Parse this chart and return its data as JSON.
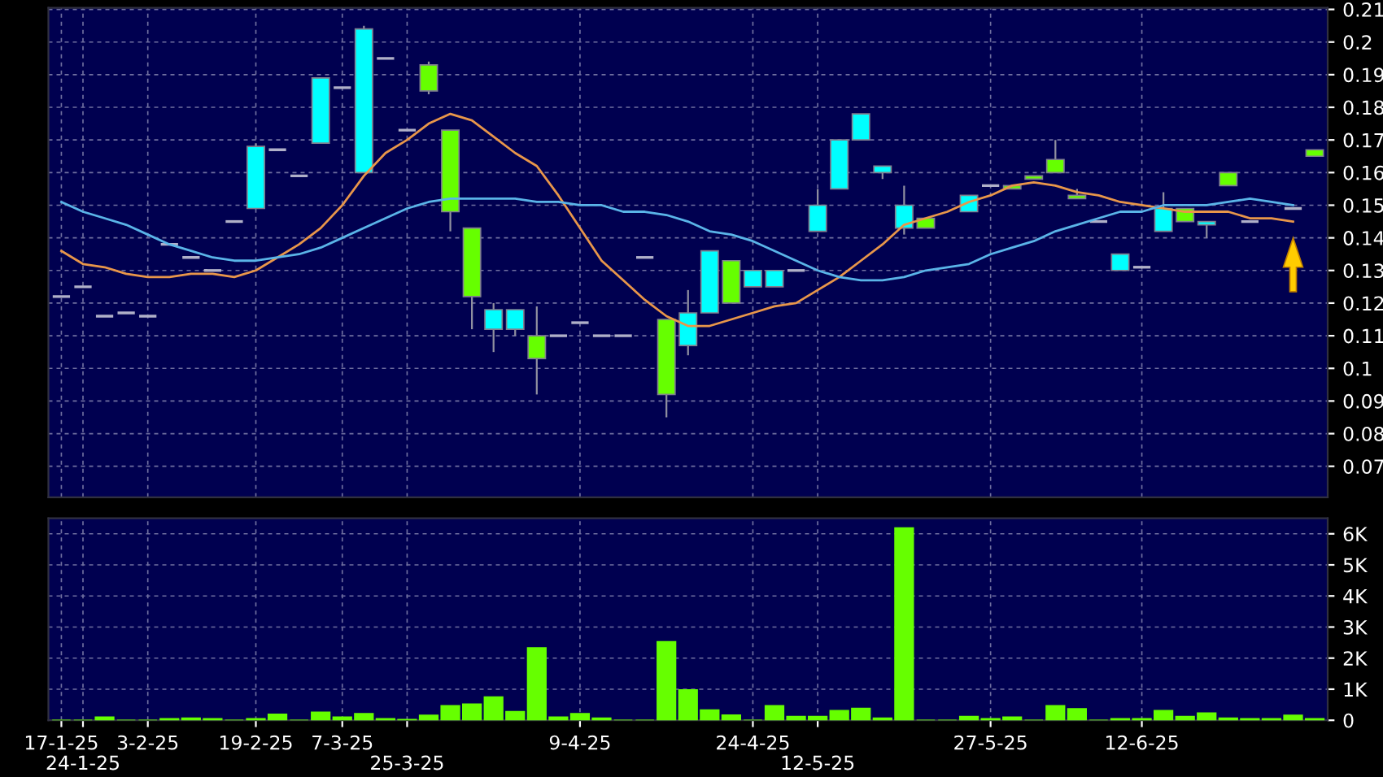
{
  "chart_data": [
    {
      "type": "candlestick",
      "ohlc": [
        [
          0.122,
          0.122,
          0.122,
          0.122
        ],
        [
          0.125,
          0.125,
          0.125,
          0.125
        ],
        [
          0.116,
          0.116,
          0.116,
          0.116
        ],
        [
          0.117,
          0.117,
          0.117,
          0.117
        ],
        [
          0.116,
          0.116,
          0.116,
          0.116
        ],
        [
          0.138,
          0.138,
          0.138,
          0.138
        ],
        [
          0.134,
          0.134,
          0.134,
          0.134
        ],
        [
          0.13,
          0.13,
          0.13,
          0.13
        ],
        [
          0.145,
          0.145,
          0.145,
          0.145
        ],
        [
          0.149,
          0.169,
          0.149,
          0.168
        ],
        [
          0.167,
          0.167,
          0.167,
          0.167
        ],
        [
          0.159,
          0.159,
          0.159,
          0.159
        ],
        [
          0.169,
          0.189,
          0.169,
          0.189
        ],
        [
          0.186,
          0.186,
          0.186,
          0.186
        ],
        [
          0.16,
          0.205,
          0.16,
          0.204
        ],
        [
          0.195,
          0.195,
          0.195,
          0.195
        ],
        [
          0.173,
          0.173,
          0.173,
          0.173
        ],
        [
          0.193,
          0.194,
          0.184,
          0.185
        ],
        [
          0.173,
          0.173,
          0.142,
          0.148
        ],
        [
          0.143,
          0.143,
          0.112,
          0.122
        ],
        [
          0.112,
          0.12,
          0.105,
          0.118
        ],
        [
          0.112,
          0.118,
          0.11,
          0.118
        ],
        [
          0.11,
          0.119,
          0.092,
          0.103
        ],
        [
          0.11,
          0.11,
          0.11,
          0.11
        ],
        [
          0.114,
          0.114,
          0.114,
          0.114
        ],
        [
          0.11,
          0.11,
          0.11,
          0.11
        ],
        [
          0.11,
          0.11,
          0.11,
          0.11
        ],
        [
          0.134,
          0.134,
          0.134,
          0.134
        ],
        [
          0.115,
          0.115,
          0.085,
          0.092
        ],
        [
          0.107,
          0.124,
          0.104,
          0.117
        ],
        [
          0.117,
          0.136,
          0.117,
          0.136
        ],
        [
          0.133,
          0.133,
          0.12,
          0.12
        ],
        [
          0.125,
          0.13,
          0.125,
          0.13
        ],
        [
          0.125,
          0.13,
          0.125,
          0.13
        ],
        [
          0.13,
          0.13,
          0.13,
          0.13
        ],
        [
          0.142,
          0.155,
          0.142,
          0.15
        ],
        [
          0.155,
          0.17,
          0.155,
          0.17
        ],
        [
          0.17,
          0.178,
          0.17,
          0.178
        ],
        [
          0.16,
          0.162,
          0.158,
          0.162
        ],
        [
          0.143,
          0.156,
          0.141,
          0.15
        ],
        [
          0.146,
          0.146,
          0.143,
          0.143
        ],
        null,
        [
          0.148,
          0.153,
          0.148,
          0.153
        ],
        [
          0.156,
          0.156,
          0.156,
          0.156
        ],
        [
          0.156,
          0.156,
          0.155,
          0.155
        ],
        [
          0.159,
          0.159,
          0.158,
          0.158
        ],
        [
          0.164,
          0.17,
          0.16,
          0.16
        ],
        [
          0.153,
          0.155,
          0.152,
          0.152
        ],
        [
          0.145,
          0.145,
          0.145,
          0.145
        ],
        [
          0.13,
          0.135,
          0.13,
          0.135
        ],
        [
          0.131,
          0.131,
          0.131,
          0.131
        ],
        [
          0.142,
          0.154,
          0.142,
          0.149
        ],
        [
          0.149,
          0.149,
          0.145,
          0.145
        ],
        [
          0.144,
          0.145,
          0.14,
          0.145
        ],
        [
          0.16,
          0.16,
          0.156,
          0.156
        ],
        [
          0.145,
          0.145,
          0.145,
          0.145
        ],
        null,
        [
          0.149,
          0.149,
          0.149,
          0.149
        ],
        [
          0.167,
          0.167,
          0.165,
          0.165
        ]
      ],
      "series": [
        {
          "type": "line",
          "color": "#e8964a",
          "values": [
            0.136,
            0.132,
            0.131,
            0.129,
            0.128,
            0.128,
            0.129,
            0.129,
            0.128,
            0.13,
            0.134,
            0.138,
            0.143,
            0.15,
            0.159,
            0.166,
            0.17,
            0.175,
            0.178,
            0.176,
            0.171,
            0.166,
            0.162,
            0.153,
            0.143,
            0.133,
            0.127,
            0.121,
            0.116,
            0.113,
            0.113,
            0.115,
            0.117,
            0.119,
            0.12,
            0.124,
            0.128,
            0.133,
            0.138,
            0.144,
            0.146,
            0.148,
            0.151,
            0.153,
            0.156,
            0.157,
            0.156,
            0.154,
            0.153,
            0.151,
            0.15,
            0.149,
            0.148,
            0.148,
            0.148,
            0.146,
            0.146,
            0.145,
            null
          ]
        },
        {
          "type": "line",
          "color": "#5ab4e8",
          "values": [
            0.151,
            0.148,
            0.146,
            0.144,
            0.141,
            0.138,
            0.136,
            0.134,
            0.133,
            0.133,
            0.134,
            0.135,
            0.137,
            0.14,
            0.143,
            0.146,
            0.149,
            0.151,
            0.152,
            0.152,
            0.152,
            0.152,
            0.151,
            0.151,
            0.15,
            0.15,
            0.148,
            0.148,
            0.147,
            0.145,
            0.142,
            0.141,
            0.139,
            0.136,
            0.133,
            0.13,
            0.128,
            0.127,
            0.127,
            0.128,
            0.13,
            0.131,
            0.132,
            0.135,
            0.137,
            0.139,
            0.142,
            0.144,
            0.146,
            0.148,
            0.148,
            0.15,
            0.15,
            0.15,
            0.151,
            0.152,
            0.151,
            0.15,
            null
          ]
        }
      ],
      "ylim": [
        0.0605,
        0.2105
      ],
      "yticks": [
        0.07,
        0.08,
        0.09,
        0.1,
        0.11,
        0.12,
        0.13,
        0.14,
        0.15,
        0.16,
        0.17,
        0.18,
        0.19,
        0.2,
        0.21
      ],
      "grid": true,
      "tick_labels": "y"
    },
    {
      "type": "bar",
      "categories": [
        "17-1-25",
        "24-1-25",
        null,
        null,
        "3-2-25",
        null,
        null,
        null,
        null,
        "19-2-25",
        null,
        null,
        null,
        "7-3-25",
        null,
        null,
        "25-3-25",
        null,
        null,
        null,
        null,
        null,
        null,
        null,
        "9-4-25",
        null,
        null,
        null,
        null,
        null,
        null,
        null,
        "24-4-25",
        null,
        null,
        "12-5-25",
        null,
        null,
        null,
        null,
        null,
        null,
        null,
        "27-5-25",
        null,
        null,
        null,
        null,
        null,
        null,
        "12-6-25",
        null,
        null,
        null,
        null,
        null,
        null,
        null,
        null
      ],
      "values": [
        0,
        0,
        0.1,
        0,
        0,
        0.05,
        0.07,
        0.05,
        0,
        0.05,
        0.19,
        0,
        0.26,
        0.1,
        0.21,
        0.05,
        0.02,
        0.16,
        0.47,
        0.52,
        0.75,
        0.28,
        2.33,
        0.1,
        0.21,
        0.07,
        0,
        0,
        2.53,
        0.98,
        0.33,
        0.17,
        0,
        0.47,
        0.12,
        0.12,
        0.31,
        0.38,
        0.07,
        6.19,
        0,
        0,
        0.12,
        0.05,
        0.1,
        0,
        0.47,
        0.37,
        0,
        0.05,
        0.05,
        0.31,
        0.12,
        0.23,
        0.07,
        0.05,
        0.05,
        0.16,
        0.05
      ],
      "color": "#66ff00",
      "ylim": [
        0,
        6.5
      ],
      "yticks": [
        0,
        {
          "value": 1,
          "label": "1K"
        },
        {
          "value": 2,
          "label": "2K"
        },
        {
          "value": 3,
          "label": "3K"
        },
        {
          "value": 4,
          "label": "4K"
        },
        {
          "value": 5,
          "label": "5K"
        },
        {
          "value": 6,
          "label": "6K"
        }
      ],
      "grid": true
    }
  ]
}
